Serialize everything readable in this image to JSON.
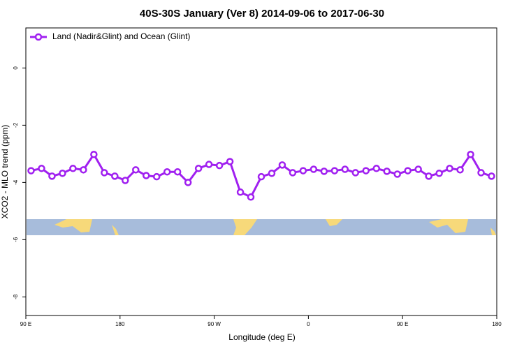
{
  "chart_data": {
    "type": "line",
    "title": "40S-30S January (Ver 8)   2014-09-06 to 2017-06-30",
    "x_label": "Longitude (deg E)",
    "y_label": "XCO2 - MLO trend (ppm)",
    "xlim": [
      90,
      540
    ],
    "xticks": [
      {
        "value": 90,
        "label": "90 E"
      },
      180,
      {
        "value": 270,
        "label": "90 W"
      },
      {
        "value": 360,
        "label": "0"
      },
      {
        "value": 450,
        "label": "90 E"
      },
      {
        "value": 540,
        "label": "180"
      }
    ],
    "ylim": [
      -8.65,
      1.4
    ],
    "yticks": [
      0,
      -2,
      -4,
      -6,
      -8
    ],
    "legend": "top-left",
    "series": [
      {
        "name": "Land (Nadir&Glint) and Ocean (Glint)",
        "color": "#a020f0",
        "x": [
          95,
          105,
          115,
          125,
          135,
          145,
          155,
          165,
          175,
          185,
          195,
          205,
          215,
          225,
          235,
          245,
          255,
          265,
          275,
          285,
          295,
          305,
          315,
          325,
          335,
          345,
          355,
          365,
          375,
          385,
          395,
          405,
          415,
          425,
          435,
          445,
          455,
          465,
          475,
          485,
          495,
          505,
          515,
          525,
          535
        ],
        "values": [
          -3.59,
          -3.51,
          -3.78,
          -3.68,
          -3.51,
          -3.56,
          -3.02,
          -3.66,
          -3.78,
          -3.93,
          -3.56,
          -3.76,
          -3.8,
          -3.63,
          -3.63,
          -4.0,
          -3.51,
          -3.37,
          -3.41,
          -3.27,
          -4.34,
          -4.51,
          -3.8,
          -3.68,
          -3.39,
          -3.66,
          -3.59,
          -3.54,
          -3.61,
          -3.59,
          -3.54,
          -3.66,
          -3.59,
          -3.51,
          -3.61,
          -3.71,
          -3.59,
          -3.54,
          -3.78,
          -3.68,
          -3.51,
          -3.56,
          -3.02,
          -3.66,
          -3.78
        ]
      }
    ]
  }
}
